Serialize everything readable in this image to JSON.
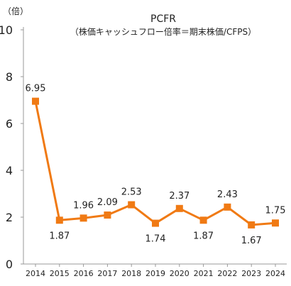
{
  "chart_data": {
    "type": "line",
    "title": "PCFR",
    "subtitle": "（株価キャッシュフロー倍率＝期末株価/CFPS）",
    "ylabel": "（倍）",
    "xlabel": "",
    "categories": [
      "2014",
      "2015",
      "2016",
      "2017",
      "2018",
      "2019",
      "2020",
      "2021",
      "2022",
      "2023",
      "2024"
    ],
    "values": [
      6.95,
      1.87,
      1.96,
      2.09,
      2.53,
      1.74,
      2.37,
      1.87,
      2.43,
      1.67,
      1.75
    ],
    "value_labels": [
      "6.95",
      "1.87",
      "1.96",
      "2.09",
      "2.53",
      "1.74",
      "2.37",
      "1.87",
      "2.43",
      "1.67",
      "1.75"
    ],
    "label_positions": [
      "above",
      "below",
      "above",
      "above",
      "above",
      "below",
      "above",
      "below",
      "above",
      "below",
      "above"
    ],
    "ylim": [
      0,
      10
    ],
    "yticks": [
      "0",
      "2",
      "4",
      "6",
      "8",
      "10"
    ],
    "grid": false,
    "legend": false,
    "colors": {
      "series": "#f07a14",
      "axis": "#999999",
      "text": "#222222"
    }
  }
}
